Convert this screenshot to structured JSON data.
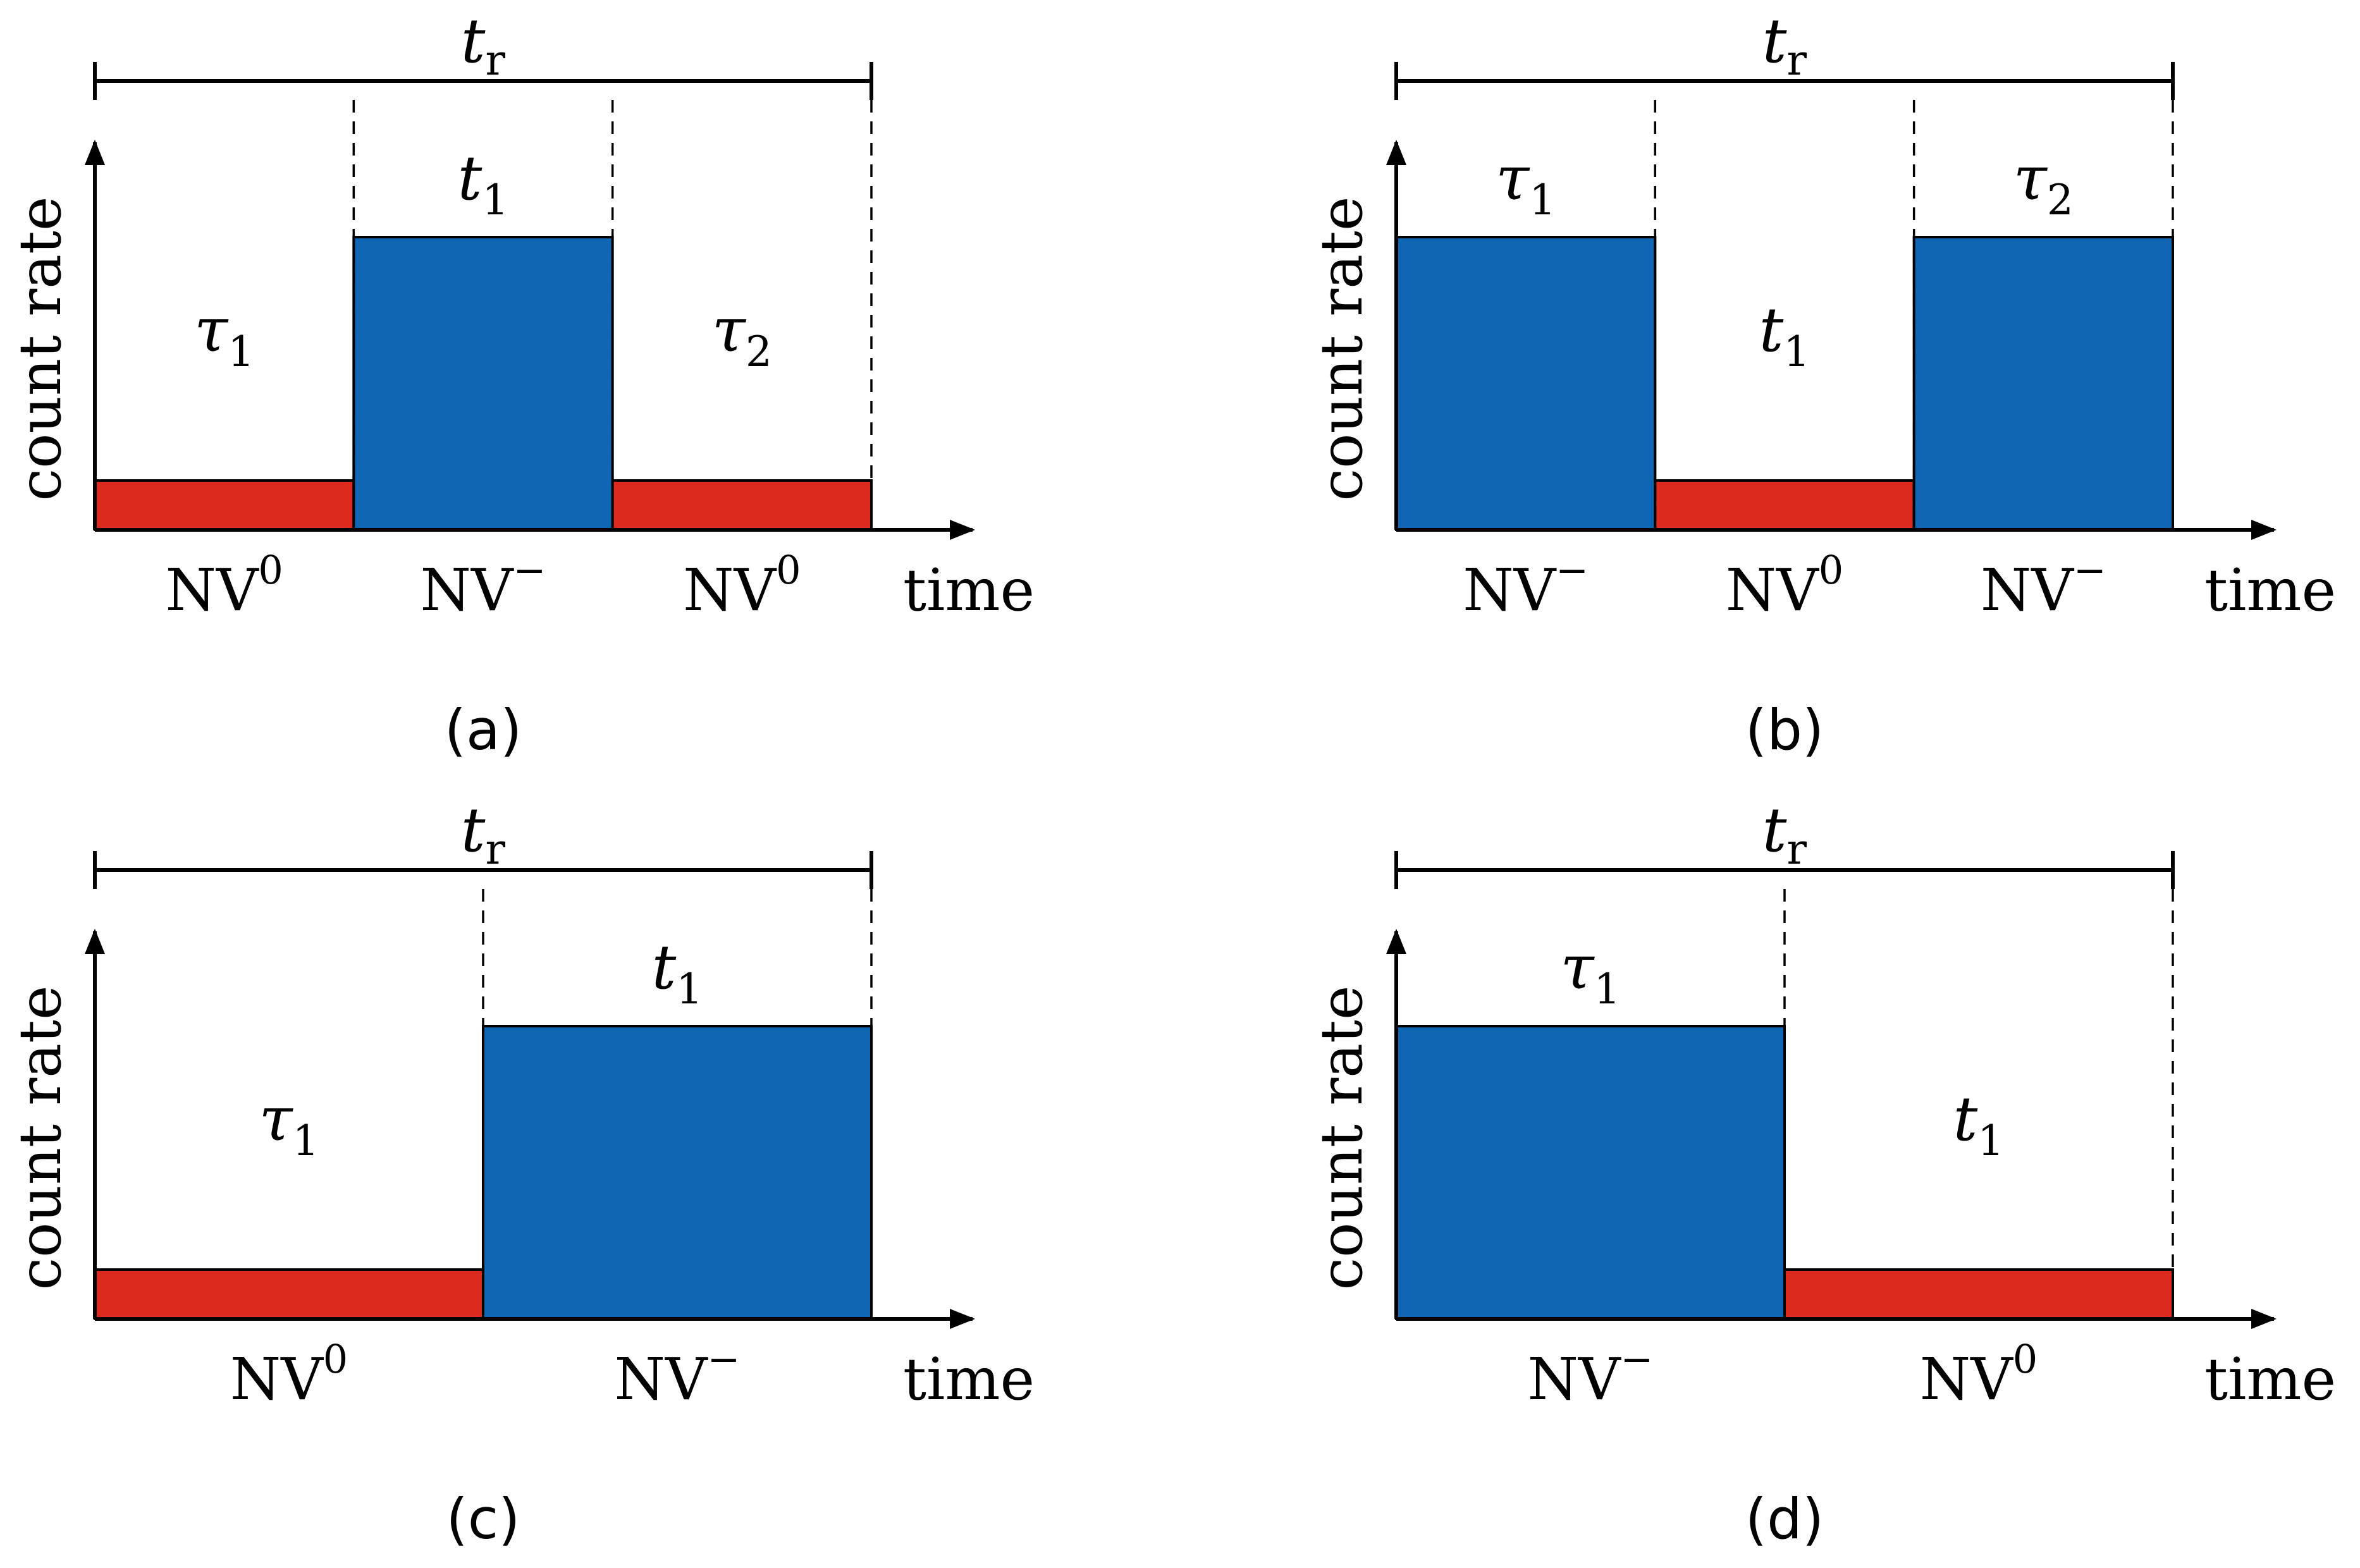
{
  "labels": {
    "y_axis": "count rate",
    "x_axis": "time",
    "period_main": "t",
    "period_sub": "r"
  },
  "colors": {
    "nv_minus": "#1166b4",
    "nv_zero": "#dc2a1e",
    "stroke": "#000000"
  },
  "panels": [
    {
      "caption": "(a)",
      "segments": [
        {
          "state": "NV",
          "charge": "0",
          "level": "low",
          "duration_symbol": "τ",
          "duration_sub": "1"
        },
        {
          "state": "NV",
          "charge": "−",
          "level": "high",
          "duration_symbol": "t",
          "duration_sub": "1"
        },
        {
          "state": "NV",
          "charge": "0",
          "level": "low",
          "duration_symbol": "τ",
          "duration_sub": "2"
        }
      ]
    },
    {
      "caption": "(b)",
      "segments": [
        {
          "state": "NV",
          "charge": "−",
          "level": "high",
          "duration_symbol": "τ",
          "duration_sub": "1"
        },
        {
          "state": "NV",
          "charge": "0",
          "level": "low",
          "duration_symbol": "t",
          "duration_sub": "1"
        },
        {
          "state": "NV",
          "charge": "−",
          "level": "high",
          "duration_symbol": "τ",
          "duration_sub": "2"
        }
      ]
    },
    {
      "caption": "(c)",
      "segments": [
        {
          "state": "NV",
          "charge": "0",
          "level": "low",
          "duration_symbol": "τ",
          "duration_sub": "1"
        },
        {
          "state": "NV",
          "charge": "−",
          "level": "high",
          "duration_symbol": "t",
          "duration_sub": "1"
        }
      ]
    },
    {
      "caption": "(d)",
      "segments": [
        {
          "state": "NV",
          "charge": "−",
          "level": "high",
          "duration_symbol": "τ",
          "duration_sub": "1"
        },
        {
          "state": "NV",
          "charge": "0",
          "level": "low",
          "duration_symbol": "t",
          "duration_sub": "1"
        }
      ]
    }
  ]
}
